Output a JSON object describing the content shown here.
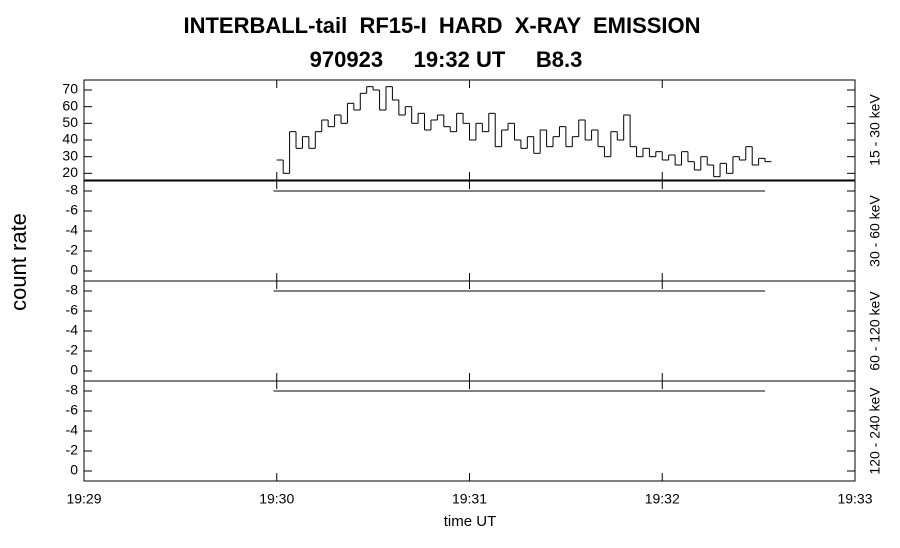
{
  "title": "INTERBALL-tail  RF15-I  HARD  X-RAY  EMISSION",
  "subtitle": "970923     19:32 UT     B8.3",
  "ylabel": "count rate",
  "xlabel": "time UT",
  "xlim": [
    70140,
    70380
  ],
  "xticks": [
    {
      "value": 70140,
      "label": "19:29"
    },
    {
      "value": 70200,
      "label": "19:30"
    },
    {
      "value": 70260,
      "label": "19:31"
    },
    {
      "value": 70320,
      "label": "19:32"
    },
    {
      "value": 70380,
      "label": "19:33"
    }
  ],
  "chart_data": [
    {
      "type": "line",
      "step": true,
      "ylabel": "15 - 30 keV",
      "color": "#000000",
      "ylim": [
        16,
        76
      ],
      "yticks": [
        20,
        30,
        40,
        50,
        60,
        70
      ],
      "x": [
        70200,
        70202,
        70204,
        70206,
        70208,
        70210,
        70212,
        70214,
        70216,
        70218,
        70220,
        70222,
        70224,
        70226,
        70228,
        70230,
        70232,
        70234,
        70236,
        70238,
        70240,
        70242,
        70244,
        70246,
        70248,
        70250,
        70252,
        70254,
        70256,
        70258,
        70260,
        70262,
        70264,
        70266,
        70268,
        70270,
        70272,
        70274,
        70276,
        70278,
        70280,
        70282,
        70284,
        70286,
        70288,
        70290,
        70292,
        70294,
        70296,
        70298,
        70300,
        70302,
        70304,
        70306,
        70308,
        70310,
        70312,
        70314,
        70316,
        70318,
        70320,
        70322,
        70324,
        70326,
        70328,
        70330,
        70332,
        70334,
        70336,
        70338,
        70340,
        70342,
        70344,
        70346,
        70348,
        70350,
        70352
      ],
      "values": [
        28,
        20,
        45,
        35,
        42,
        35,
        45,
        52,
        48,
        55,
        50,
        62,
        58,
        68,
        72,
        70,
        58,
        72,
        64,
        55,
        60,
        50,
        56,
        46,
        52,
        55,
        48,
        45,
        56,
        50,
        40,
        50,
        45,
        56,
        36,
        46,
        50,
        40,
        35,
        42,
        32,
        46,
        36,
        42,
        48,
        36,
        42,
        52,
        40,
        46,
        36,
        30,
        45,
        40,
        55,
        36,
        30,
        35,
        30,
        33,
        28,
        31,
        25,
        33,
        27,
        22,
        30,
        25,
        18,
        26,
        20,
        30,
        28,
        36,
        25,
        29,
        27
      ]
    },
    {
      "type": "line",
      "step": true,
      "ylabel": "30 - 60 keV",
      "color": "#000000",
      "ylim": [
        1,
        -9
      ],
      "yticks": [
        -8,
        -6,
        -4,
        -2,
        0
      ],
      "x": [
        70199,
        70352
      ],
      "values": [
        -8,
        -8
      ]
    },
    {
      "type": "line",
      "step": true,
      "ylabel": "60 - 120 keV",
      "color": "#000000",
      "ylim": [
        1,
        -9
      ],
      "yticks": [
        -8,
        -6,
        -4,
        -2,
        0
      ],
      "x": [
        70199,
        70352
      ],
      "values": [
        -8,
        -8
      ]
    },
    {
      "type": "line",
      "step": true,
      "ylabel": "120 - 240 keV",
      "color": "#000000",
      "ylim": [
        1,
        -9
      ],
      "yticks": [
        -8,
        -6,
        -4,
        -2,
        0
      ],
      "x": [
        70199,
        70352
      ],
      "values": [
        -8,
        -8
      ]
    }
  ]
}
